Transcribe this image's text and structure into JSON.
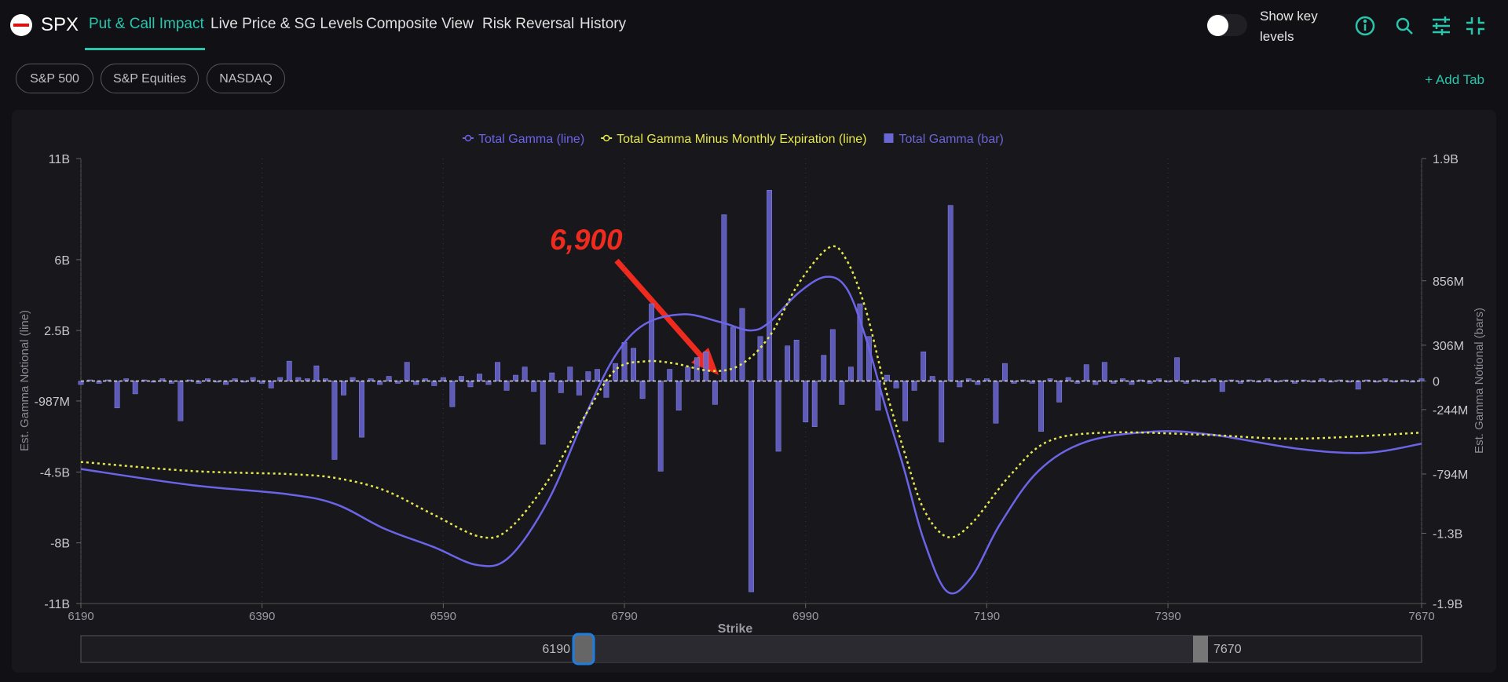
{
  "nav": {
    "symbol": "SPX",
    "tabs": [
      "Put & Call Impact",
      "Live Price & SG Levels",
      "Composite View",
      "Risk Reversal",
      "History"
    ],
    "toggle_label": "Show key levels"
  },
  "chips": [
    "S&P 500",
    "S&P Equities",
    "NASDAQ"
  ],
  "add_tab": "+ Add Tab",
  "chart_data": {
    "type": "combo",
    "annotation": "6,900",
    "xlabel": "Strike",
    "ylabel": "Est. Gamma Notional (line)",
    "y2label": "Est. Gamma Notional (bars)",
    "xlim": [
      6190,
      7670
    ],
    "xticks": [
      6190,
      6390,
      6590,
      6790,
      6990,
      7190,
      7390,
      7670
    ],
    "ylim": [
      -11000000000.0,
      11000000000.0
    ],
    "yticks": [
      {
        "value": 11000000000.0,
        "label": "11B"
      },
      {
        "value": 6000000000.0,
        "label": "6B"
      },
      {
        "value": 2500000000.0,
        "label": "2.5B"
      },
      {
        "value": -987000000.0,
        "label": "-987M"
      },
      {
        "value": -4500000000.0,
        "label": "-4.5B"
      },
      {
        "value": -8000000000.0,
        "label": "-8B"
      },
      {
        "value": -11000000000.0,
        "label": "-11B"
      }
    ],
    "y2lim": [
      -1900000000.0,
      1900000000.0
    ],
    "y2ticks": [
      {
        "value": 1900000000.0,
        "label": "1.9B"
      },
      {
        "value": 856000000.0,
        "label": "856M"
      },
      {
        "value": 306000000.0,
        "label": "306M"
      },
      0,
      {
        "value": -244000000.0,
        "label": "-244M"
      },
      {
        "value": -794000000.0,
        "label": "-794M"
      },
      {
        "value": -1300000000.0,
        "label": "-1.3B"
      },
      {
        "value": -1900000000.0,
        "label": "-1.9B"
      }
    ],
    "grid": true,
    "series": [
      {
        "name": "Total Gamma (line)",
        "type": "line",
        "color": "#6c64e6",
        "x": [
          6190,
          6313,
          6419,
          6472,
          6525,
          6579,
          6628,
          6663,
          6706,
          6748,
          6780,
          6812,
          6855,
          6897,
          6929,
          6950,
          6982,
          7012,
          7035,
          7056,
          7077,
          7099,
          7120,
          7146,
          7173,
          7205,
          7247,
          7300,
          7375,
          7438,
          7534,
          7608,
          7670
        ],
        "values": [
          -4350000000.0,
          -5150000000.0,
          -5600000000.0,
          -6100000000.0,
          -7300000000.0,
          -8200000000.0,
          -9100000000.0,
          -8700000000.0,
          -5900000000.0,
          -1600000000.0,
          1260000000.0,
          2800000000.0,
          3300000000.0,
          2900000000.0,
          2500000000.0,
          2900000000.0,
          4350000000.0,
          5150000000.0,
          4600000000.0,
          2200000000.0,
          -1100000000.0,
          -4400000000.0,
          -7800000000.0,
          -10400000000.0,
          -9700000000.0,
          -7050000000.0,
          -4450000000.0,
          -3000000000.0,
          -2500000000.0,
          -2650000000.0,
          -3350000000.0,
          -3550000000.0,
          -3100000000.0
        ]
      },
      {
        "name": "Total Gamma Minus Monthly Expiration (line)",
        "type": "line",
        "color": "#e6e84e",
        "dashed": true,
        "x": [
          6190,
          6313,
          6419,
          6472,
          6525,
          6579,
          6631,
          6663,
          6706,
          6748,
          6780,
          6812,
          6844,
          6886,
          6918,
          6950,
          6982,
          7016,
          7035,
          7056,
          7077,
          7099,
          7120,
          7146,
          7173,
          7215,
          7257,
          7321,
          7427,
          7534,
          7670
        ],
        "values": [
          -4000000000.0,
          -4450000000.0,
          -4600000000.0,
          -4800000000.0,
          -5400000000.0,
          -6600000000.0,
          -7700000000.0,
          -7300000000.0,
          -4900000000.0,
          -1600000000.0,
          550000000.0,
          970000000.0,
          880000000.0,
          500000000.0,
          800000000.0,
          2200000000.0,
          4800000000.0,
          6600000000.0,
          6000000000.0,
          3600000000.0,
          -170000000.0,
          -3500000000.0,
          -6300000000.0,
          -7700000000.0,
          -7050000000.0,
          -4700000000.0,
          -3000000000.0,
          -2550000000.0,
          -2650000000.0,
          -2850000000.0,
          -2550000000.0
        ]
      },
      {
        "name": "Total Gamma (bar)",
        "type": "bar",
        "axis": "y2",
        "color": "#6a66d4",
        "x": [
          6190,
          6200,
          6210,
          6220,
          6230,
          6240,
          6250,
          6260,
          6270,
          6280,
          6290,
          6300,
          6310,
          6320,
          6330,
          6340,
          6350,
          6360,
          6370,
          6380,
          6390,
          6400,
          6410,
          6420,
          6430,
          6440,
          6450,
          6460,
          6470,
          6480,
          6490,
          6500,
          6510,
          6520,
          6530,
          6540,
          6550,
          6560,
          6570,
          6580,
          6590,
          6600,
          6610,
          6620,
          6630,
          6640,
          6650,
          6660,
          6670,
          6680,
          6690,
          6700,
          6710,
          6720,
          6730,
          6740,
          6750,
          6760,
          6770,
          6780,
          6790,
          6800,
          6810,
          6820,
          6830,
          6840,
          6850,
          6860,
          6870,
          6880,
          6890,
          6900,
          6910,
          6920,
          6930,
          6940,
          6950,
          6960,
          6970,
          6980,
          6990,
          7000,
          7010,
          7020,
          7030,
          7040,
          7050,
          7060,
          7070,
          7080,
          7090,
          7100,
          7110,
          7120,
          7130,
          7140,
          7150,
          7160,
          7170,
          7180,
          7190,
          7200,
          7210,
          7220,
          7230,
          7240,
          7250,
          7260,
          7270,
          7280,
          7290,
          7300,
          7310,
          7320,
          7330,
          7340,
          7350,
          7360,
          7370,
          7380,
          7390,
          7400,
          7410,
          7420,
          7430,
          7440,
          7450,
          7460,
          7470,
          7480,
          7490,
          7500,
          7510,
          7520,
          7530,
          7540,
          7550,
          7560,
          7570,
          7580,
          7590,
          7600,
          7610,
          7620,
          7630,
          7640,
          7650,
          7660,
          7670
        ],
        "values": [
          -30000000.0,
          10000000.0,
          -20000000.0,
          10000000.0,
          -230000000.0,
          20000000.0,
          -110000000.0,
          10000000.0,
          -10000000.0,
          20000000.0,
          -20000000.0,
          -340000000.0,
          10000000.0,
          -20000000.0,
          20000000.0,
          -10000000.0,
          -30000000.0,
          20000000.0,
          -10000000.0,
          30000000.0,
          -20000000.0,
          -60000000.0,
          30000000.0,
          170000000.0,
          30000000.0,
          20000000.0,
          130000000.0,
          20000000.0,
          -670000000.0,
          -120000000.0,
          30000000.0,
          -480000000.0,
          20000000.0,
          -30000000.0,
          40000000.0,
          -20000000.0,
          160000000.0,
          -30000000.0,
          20000000.0,
          -40000000.0,
          30000000.0,
          -220000000.0,
          40000000.0,
          -50000000.0,
          60000000.0,
          -30000000.0,
          160000000.0,
          -80000000.0,
          50000000.0,
          120000000.0,
          -90000000.0,
          -540000000.0,
          70000000.0,
          -100000000.0,
          120000000.0,
          -120000000.0,
          80000000.0,
          100000000.0,
          -140000000.0,
          150000000.0,
          330000000.0,
          280000000.0,
          -150000000.0,
          660000000.0,
          -770000000.0,
          100000000.0,
          -250000000.0,
          120000000.0,
          200000000.0,
          250000000.0,
          -200000000.0,
          1420000000.0,
          460000000.0,
          620000000.0,
          -1800000000.0,
          380000000.0,
          1630000000.0,
          -600000000.0,
          300000000.0,
          350000000.0,
          -350000000.0,
          -390000000.0,
          220000000.0,
          440000000.0,
          -200000000.0,
          120000000.0,
          660000000.0,
          380000000.0,
          -250000000.0,
          50000000.0,
          -60000000.0,
          -340000000.0,
          -80000000.0,
          250000000.0,
          40000000.0,
          -520000000.0,
          1500000000.0,
          -50000000.0,
          20000000.0,
          -30000000.0,
          20000000.0,
          -360000000.0,
          150000000.0,
          -20000000.0,
          10000000.0,
          -20000000.0,
          -430000000.0,
          20000000.0,
          -180000000.0,
          30000000.0,
          -20000000.0,
          140000000.0,
          -30000000.0,
          160000000.0,
          -20000000.0,
          20000000.0,
          -30000000.0,
          10000000.0,
          -20000000.0,
          20000000.0,
          -10000000.0,
          200000000.0,
          -20000000.0,
          10000000.0,
          -10000000.0,
          20000000.0,
          -90000000.0,
          10000000.0,
          -20000000.0,
          10000000.0,
          -10000000.0,
          20000000.0,
          -10000000.0,
          10000000.0,
          -20000000.0,
          10000000.0,
          -10000000.0,
          20000000.0,
          -10000000.0,
          10000000.0,
          -10000000.0,
          -70000000.0,
          10000000.0,
          -10000000.0,
          20000000.0,
          -10000000.0,
          10000000.0,
          -10000000.0,
          20000000.0
        ]
      }
    ]
  }
}
